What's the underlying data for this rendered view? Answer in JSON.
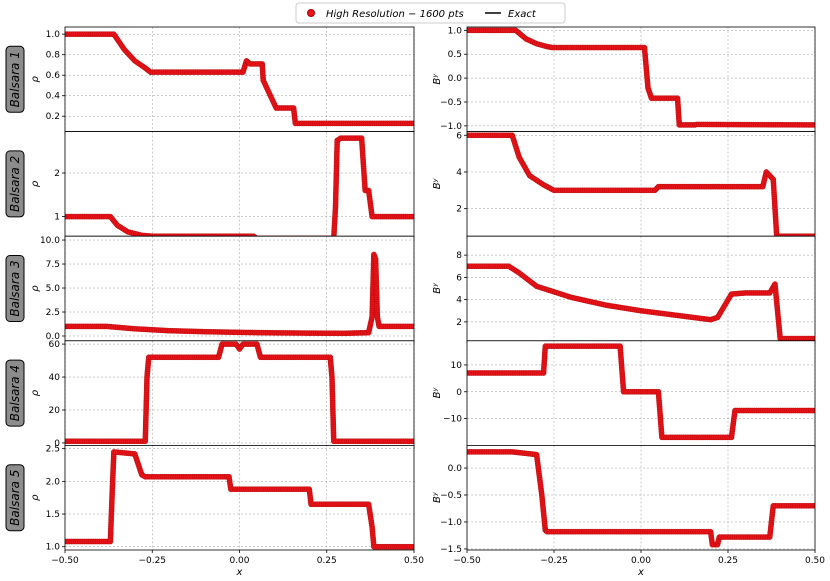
{
  "legend": {
    "placement": "top-center",
    "entries": [
      {
        "label": "High Resolution − 1600 pts",
        "marker": "circle",
        "color": "#e8151b"
      },
      {
        "label": "Exact",
        "marker": "line",
        "color": "#000000"
      }
    ]
  },
  "colors": {
    "points": "#e8151b",
    "point_edge": "#b00000",
    "exact": "#000000",
    "grid": "#9a9a9a",
    "row_label_bg": "#8c8c8c"
  },
  "x_axis": {
    "label": "x",
    "lim": [
      -0.5,
      0.5
    ],
    "ticks": [
      -0.5,
      -0.25,
      0.0,
      0.25,
      0.5
    ],
    "tick_labels": [
      "−0.50",
      "−0.25",
      "0.00",
      "0.25",
      "0.50"
    ]
  },
  "row_labels": [
    "Balsara 1",
    "Balsara 2",
    "Balsara 3",
    "Balsara 4",
    "Balsara 5"
  ],
  "chart_data": [
    {
      "type": "line",
      "row": 0,
      "col": 0,
      "ylabel": "ρ",
      "ylim": [
        0.05,
        1.07
      ],
      "yticks": [
        0.2,
        0.4,
        0.6,
        0.8,
        1.0
      ],
      "ytick_labels": [
        "0.2",
        "0.4",
        "0.6",
        "0.8",
        "1.0"
      ],
      "x": [
        -0.5,
        -0.36,
        -0.33,
        -0.3,
        -0.27,
        -0.255,
        0.01,
        0.02,
        0.03,
        0.065,
        0.068,
        0.105,
        0.11,
        0.155,
        0.16,
        0.5
      ],
      "y": [
        1.0,
        1.0,
        0.85,
        0.74,
        0.67,
        0.63,
        0.63,
        0.74,
        0.71,
        0.71,
        0.55,
        0.28,
        0.28,
        0.28,
        0.13,
        0.13
      ]
    },
    {
      "type": "line",
      "row": 1,
      "col": 0,
      "ylabel": "ρ",
      "ylim": [
        0.55,
        2.95
      ],
      "yticks": [
        1,
        2
      ],
      "ytick_labels": [
        "1",
        "2"
      ],
      "x": [
        -0.5,
        -0.37,
        -0.35,
        -0.32,
        -0.28,
        -0.25,
        0.04,
        0.05,
        0.27,
        0.275,
        0.28,
        0.29,
        0.35,
        0.36,
        0.37,
        0.38,
        0.5
      ],
      "y": [
        1.0,
        1.0,
        0.8,
        0.65,
        0.57,
        0.55,
        0.55,
        0.5,
        0.5,
        1.2,
        2.75,
        2.8,
        2.8,
        1.6,
        1.6,
        1.0,
        1.0
      ]
    },
    {
      "type": "line",
      "row": 2,
      "col": 0,
      "ylabel": "ρ",
      "ylim": [
        -0.5,
        10.4
      ],
      "yticks": [
        0.0,
        2.5,
        5.0,
        7.5,
        10.0
      ],
      "ytick_labels": [
        "0.0",
        "2.5",
        "5.0",
        "7.5",
        "10.0"
      ],
      "x": [
        -0.5,
        -0.38,
        -0.3,
        -0.2,
        -0.1,
        0.0,
        0.1,
        0.2,
        0.3,
        0.37,
        0.38,
        0.385,
        0.39,
        0.395,
        0.4,
        0.5
      ],
      "y": [
        1.0,
        1.0,
        0.75,
        0.55,
        0.45,
        0.38,
        0.33,
        0.3,
        0.28,
        0.35,
        2.0,
        8.5,
        8.0,
        2.0,
        1.0,
        1.0
      ]
    },
    {
      "type": "line",
      "row": 3,
      "col": 0,
      "ylabel": "ρ",
      "ylim": [
        -1.5,
        62
      ],
      "yticks": [
        0,
        20,
        40,
        60
      ],
      "ytick_labels": [
        "0",
        "20",
        "40",
        "60"
      ],
      "x": [
        -0.5,
        -0.27,
        -0.265,
        -0.26,
        -0.06,
        -0.05,
        -0.01,
        0.0,
        0.01,
        0.05,
        0.06,
        0.26,
        0.265,
        0.27,
        0.5
      ],
      "y": [
        1.0,
        1.0,
        40,
        52,
        52,
        60,
        60,
        57,
        60,
        60,
        52,
        52,
        40,
        1.0,
        1.0
      ]
    },
    {
      "type": "line",
      "row": 4,
      "col": 0,
      "ylabel": "ρ",
      "ylim": [
        0.95,
        2.55
      ],
      "yticks": [
        1.0,
        1.5,
        2.0,
        2.5
      ],
      "ytick_labels": [
        "1.0",
        "1.5",
        "2.0",
        "2.5"
      ],
      "x": [
        -0.5,
        -0.37,
        -0.365,
        -0.36,
        -0.3,
        -0.28,
        -0.27,
        -0.03,
        -0.025,
        0.2,
        0.205,
        0.37,
        0.38,
        0.385,
        0.5
      ],
      "y": [
        1.08,
        1.08,
        1.8,
        2.45,
        2.42,
        2.1,
        2.07,
        2.07,
        1.88,
        1.88,
        1.65,
        1.65,
        1.3,
        1.0,
        1.0
      ]
    },
    {
      "type": "line",
      "row": 0,
      "col": 1,
      "ylabel": "Bʸ",
      "ylim": [
        -1.12,
        1.07
      ],
      "yticks": [
        -1.0,
        -0.5,
        0.0,
        0.5,
        1.0
      ],
      "ytick_labels": [
        "−1.0",
        "−0.5",
        "0.0",
        "0.5",
        "1.0"
      ],
      "x": [
        -0.5,
        -0.36,
        -0.33,
        -0.3,
        -0.27,
        -0.255,
        0.01,
        0.02,
        0.03,
        0.105,
        0.11,
        0.155,
        0.16,
        0.5
      ],
      "y": [
        1.0,
        1.0,
        0.82,
        0.72,
        0.66,
        0.64,
        0.64,
        -0.2,
        -0.42,
        -0.42,
        -0.98,
        -0.98,
        -0.97,
        -0.98
      ]
    },
    {
      "type": "line",
      "row": 1,
      "col": 1,
      "ylabel": "Bʸ",
      "ylim": [
        0.5,
        6.2
      ],
      "yticks": [
        2,
        4,
        6
      ],
      "ytick_labels": [
        "2",
        "4",
        "6"
      ],
      "x": [
        -0.5,
        -0.37,
        -0.35,
        -0.32,
        -0.28,
        -0.25,
        0.04,
        0.05,
        0.35,
        0.36,
        0.38,
        0.39,
        0.5
      ],
      "y": [
        6.0,
        6.0,
        4.8,
        3.8,
        3.3,
        3.0,
        3.0,
        3.2,
        3.2,
        4.0,
        3.6,
        0.5,
        0.5
      ]
    },
    {
      "type": "line",
      "row": 2,
      "col": 1,
      "ylabel": "Bʸ",
      "ylim": [
        0.3,
        9.7
      ],
      "yticks": [
        2,
        4,
        6,
        8
      ],
      "ytick_labels": [
        "2",
        "4",
        "6",
        "8"
      ],
      "x": [
        -0.5,
        -0.38,
        -0.35,
        -0.3,
        -0.2,
        -0.1,
        0.0,
        0.1,
        0.2,
        0.22,
        0.26,
        0.3,
        0.37,
        0.385,
        0.4,
        0.5
      ],
      "y": [
        7.0,
        7.0,
        6.4,
        5.2,
        4.2,
        3.5,
        3.0,
        2.6,
        2.2,
        2.4,
        4.5,
        4.6,
        4.6,
        5.4,
        0.5,
        0.5
      ]
    },
    {
      "type": "line",
      "row": 3,
      "col": 1,
      "ylabel": "Bʸ",
      "ylim": [
        -20,
        19
      ],
      "yticks": [
        -10,
        0,
        10
      ],
      "ytick_labels": [
        "−10",
        "0",
        "10"
      ],
      "x": [
        -0.5,
        -0.28,
        -0.275,
        -0.06,
        -0.05,
        0.05,
        0.06,
        0.26,
        0.27,
        0.5
      ],
      "y": [
        7.0,
        7.0,
        17,
        17,
        0.0,
        0.0,
        -17,
        -17,
        -7.0,
        -7.0
      ]
    },
    {
      "type": "line",
      "row": 4,
      "col": 1,
      "ylabel": "Bʸ",
      "ylim": [
        -1.52,
        0.42
      ],
      "yticks": [
        -1.5,
        -1.0,
        -0.5,
        0.0
      ],
      "ytick_labels": [
        "−1.5",
        "−1.0",
        "−0.5",
        "0.0"
      ],
      "x": [
        -0.5,
        -0.37,
        -0.3,
        -0.285,
        -0.275,
        -0.27,
        0.2,
        0.205,
        0.22,
        0.225,
        0.37,
        0.38,
        0.5
      ],
      "y": [
        0.3,
        0.3,
        0.25,
        -0.5,
        -1.15,
        -1.18,
        -1.18,
        -1.42,
        -1.42,
        -1.28,
        -1.28,
        -0.7,
        -0.7
      ]
    }
  ]
}
